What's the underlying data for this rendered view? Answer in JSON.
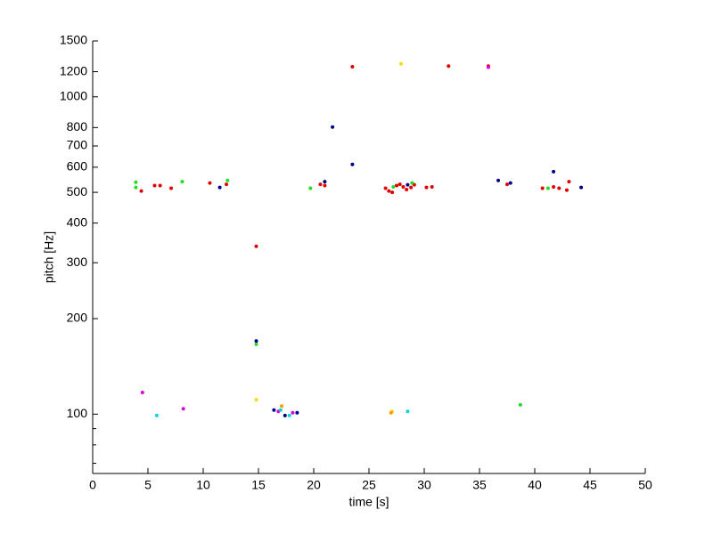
{
  "chart_data": {
    "type": "scatter",
    "x_label": "time [s]",
    "y_label": "pitch [Hz]",
    "xlim": [
      0,
      50
    ],
    "xticks": [
      0,
      5,
      10,
      15,
      20,
      25,
      30,
      35,
      40,
      45,
      50
    ],
    "ylim": [
      65,
      1500
    ],
    "y_log": true,
    "yticks": [
      100,
      200,
      300,
      400,
      500,
      600,
      700,
      800,
      1000,
      1200,
      1500
    ],
    "y_minor_ticks": [
      70,
      80,
      90
    ],
    "series": [
      {
        "color": "#e00000",
        "x": [
          4.4,
          5.6,
          6.1,
          7.1,
          10.6,
          12.1,
          14.8,
          20.6,
          21.0,
          23.5,
          26.5,
          26.8,
          27.1,
          27.5,
          27.8,
          28.1,
          28.4,
          28.8,
          29.1,
          30.2,
          30.7,
          32.2,
          35.8,
          37.5,
          40.7,
          41.7,
          42.2,
          42.9,
          43.1
        ],
        "values": [
          505,
          525,
          525,
          515,
          535,
          530,
          338,
          530,
          525,
          1244,
          515,
          505,
          500,
          525,
          530,
          520,
          510,
          518,
          528,
          518,
          520,
          1250,
          1250,
          530,
          515,
          520,
          515,
          508,
          540
        ]
      },
      {
        "color": "#22dd22",
        "x": [
          3.9,
          3.9,
          8.1,
          12.2,
          19.7,
          27.2,
          28.9,
          41.2,
          38.7,
          14.8
        ],
        "values": [
          538,
          518,
          540,
          545,
          515,
          520,
          535,
          515,
          107,
          166
        ]
      },
      {
        "color": "#00008b",
        "x": [
          11.5,
          21.0,
          21.7,
          23.5,
          28.5,
          36.7,
          37.8,
          41.7,
          44.2,
          14.8,
          16.4,
          17.4,
          18.5
        ],
        "values": [
          518,
          540,
          803,
          612,
          528,
          545,
          535,
          581,
          518,
          170,
          103,
          99,
          101
        ]
      },
      {
        "color": "#f0e000",
        "x": [
          27.9,
          14.8,
          27.1
        ],
        "values": [
          1270,
          111,
          102
        ]
      },
      {
        "color": "#e000e0",
        "x": [
          4.5,
          8.2,
          35.8,
          16.8,
          18.1
        ],
        "values": [
          117,
          104,
          1240,
          102,
          101
        ]
      },
      {
        "color": "#00d8d8",
        "x": [
          5.8,
          17.0,
          17.8,
          28.5
        ],
        "values": [
          99,
          103,
          99,
          102
        ]
      },
      {
        "color": "#ff9900",
        "x": [
          17.1,
          27.0
        ],
        "values": [
          106,
          101
        ]
      }
    ]
  }
}
